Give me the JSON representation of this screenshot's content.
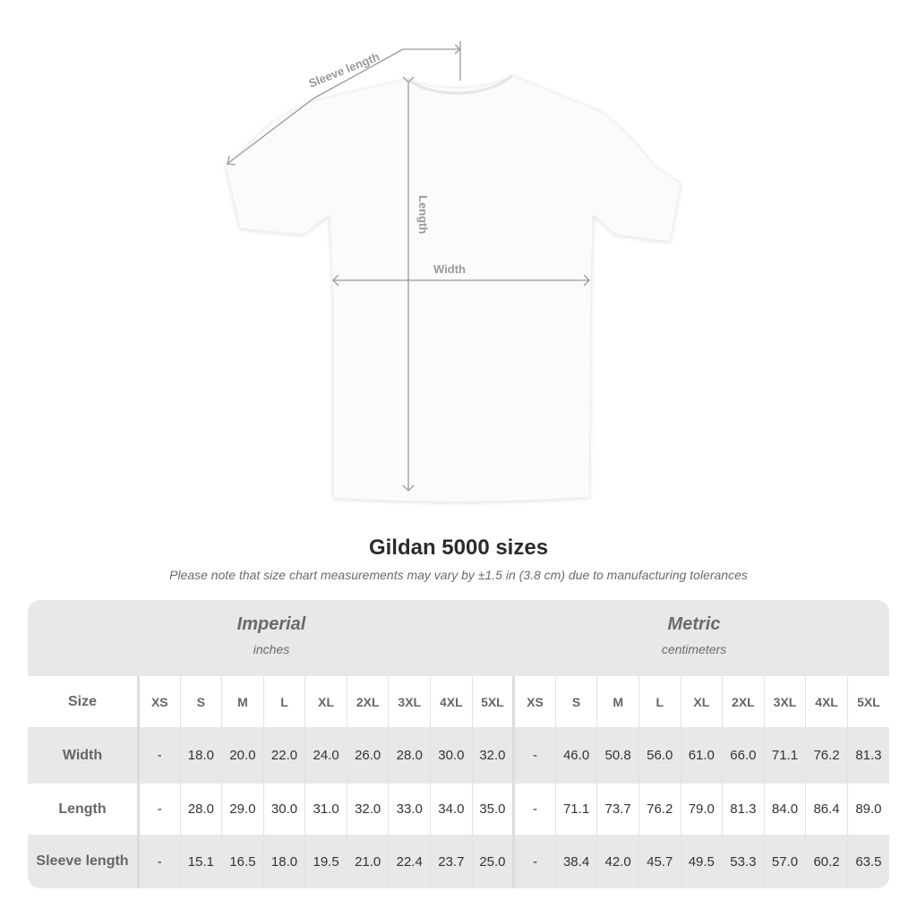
{
  "diagram": {
    "labels": {
      "sleeve": "Sleeve length",
      "length": "Length",
      "width": "Width"
    }
  },
  "title": "Gildan 5000 sizes",
  "note": "Please note that size chart measurements may vary by ±1.5 in (3.8 cm) due to manufacturing tolerances",
  "imperial": {
    "heading": "Imperial",
    "unit": "inches"
  },
  "metric": {
    "heading": "Metric",
    "unit": "centimeters"
  },
  "table": {
    "size_label": "Size",
    "sizes": [
      "XS",
      "S",
      "M",
      "L",
      "XL",
      "2XL",
      "3XL",
      "4XL",
      "5XL"
    ],
    "rows": [
      {
        "label": "Width",
        "imperial": [
          "-",
          "18.0",
          "20.0",
          "22.0",
          "24.0",
          "26.0",
          "28.0",
          "30.0",
          "32.0"
        ],
        "metric": [
          "-",
          "46.0",
          "50.8",
          "56.0",
          "61.0",
          "66.0",
          "71.1",
          "76.2",
          "81.3"
        ]
      },
      {
        "label": "Length",
        "imperial": [
          "-",
          "28.0",
          "29.0",
          "30.0",
          "31.0",
          "32.0",
          "33.0",
          "34.0",
          "35.0"
        ],
        "metric": [
          "-",
          "71.1",
          "73.7",
          "76.2",
          "79.0",
          "81.3",
          "84.0",
          "86.4",
          "89.0"
        ]
      },
      {
        "label": "Sleeve length",
        "imperial": [
          "-",
          "15.1",
          "16.5",
          "18.0",
          "19.5",
          "21.0",
          "22.4",
          "23.7",
          "25.0"
        ],
        "metric": [
          "-",
          "38.4",
          "42.0",
          "45.7",
          "49.5",
          "53.3",
          "57.0",
          "60.2",
          "63.5"
        ]
      }
    ]
  },
  "colors": {
    "panel": "#e8e8e8",
    "measure_line": "#999999"
  }
}
